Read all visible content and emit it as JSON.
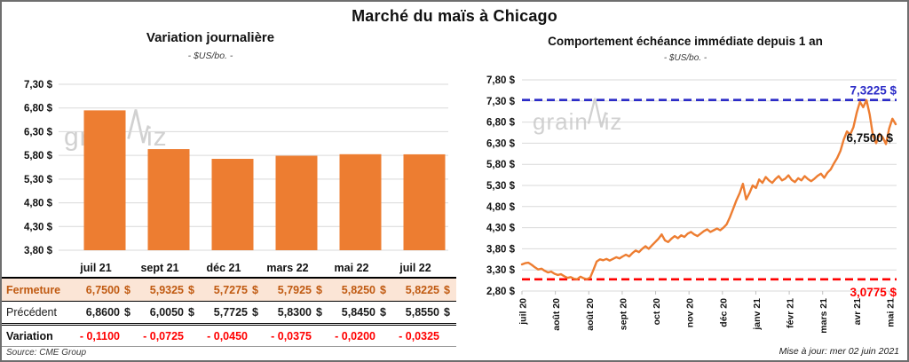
{
  "page": {
    "title": "Marché du maïs à Chicago",
    "watermark": "grainwiz",
    "source": "Source: CME Group",
    "updated": "Mise à jour: mer 02 juin 2021"
  },
  "left_chart": {
    "title": "Variation journalière",
    "subtitle": "- $US/bo. -"
  },
  "right_chart": {
    "title": "Comportement échéance immédiate depuis 1 an",
    "subtitle": "- $US/bo. -"
  },
  "table": {
    "headers": [
      "juil 21",
      "sept 21",
      "déc 21",
      "mars 22",
      "mai 22",
      "juil 22"
    ],
    "rows": {
      "fermeture": {
        "label": "Fermeture",
        "suffix": "$",
        "values": [
          "6,7500",
          "5,9325",
          "5,7275",
          "5,7925",
          "5,8250",
          "5,8225"
        ]
      },
      "precedent": {
        "label": "Précédent",
        "suffix": "$",
        "values": [
          "6,8600",
          "6,0050",
          "5,7725",
          "5,8300",
          "5,8450",
          "5,8550"
        ]
      },
      "variation": {
        "label": "Variation",
        "suffix": "",
        "values": [
          "- 0,1100",
          "- 0,0725",
          "- 0,0450",
          "- 0,0375",
          "- 0,0200",
          "- 0,0325"
        ]
      }
    }
  },
  "chart_data": [
    {
      "type": "bar",
      "title": "Variation journalière",
      "subtitle": "- $US/bo. -",
      "categories": [
        "juil 21",
        "sept 21",
        "déc 21",
        "mars 22",
        "mai 22",
        "juil 22"
      ],
      "values": [
        6.75,
        5.9325,
        5.7275,
        5.7925,
        5.825,
        5.8225
      ],
      "ylim": [
        3.8,
        7.3
      ],
      "yticks": [
        "7,30 $",
        "6,80 $",
        "6,30 $",
        "5,80 $",
        "5,30 $",
        "4,80 $",
        "4,30 $",
        "3,80 $"
      ],
      "bar_color": "#ED7D31",
      "grid_color": "#D9D9D9",
      "legend": "none"
    },
    {
      "type": "line",
      "title": "Comportement échéance immédiate depuis 1 an",
      "subtitle": "- $US/bo. -",
      "x_labels": [
        "juil 20",
        "août 20",
        "août 20",
        "sept 20",
        "oct 20",
        "nov 20",
        "déc 20",
        "janv 21",
        "févr 21",
        "mars 21",
        "avr 21",
        "mai 21"
      ],
      "ylim": [
        2.8,
        7.8
      ],
      "yticks": [
        "7,80 $",
        "7,30 $",
        "6,80 $",
        "6,30 $",
        "5,80 $",
        "5,30 $",
        "4,80 $",
        "4,30 $",
        "3,80 $",
        "3,30 $",
        "2,80 $"
      ],
      "line_color": "#ED7D31",
      "grid_color": "#D9D9D9",
      "max_line": {
        "value": 7.3225,
        "label": "7,3225 $",
        "color": "#2B2BC7",
        "style": "dashed"
      },
      "min_line": {
        "value": 3.0775,
        "label": "3,0775 $",
        "color": "#FF0000",
        "style": "dashed"
      },
      "last_point_label": {
        "value": 6.75,
        "label": "6,7500 $",
        "color": "#111111"
      },
      "values": [
        3.43,
        3.46,
        3.47,
        3.42,
        3.36,
        3.31,
        3.33,
        3.28,
        3.24,
        3.26,
        3.21,
        3.18,
        3.2,
        3.15,
        3.11,
        3.13,
        3.09,
        3.08,
        3.14,
        3.1,
        3.08,
        3.12,
        3.3,
        3.5,
        3.55,
        3.53,
        3.56,
        3.52,
        3.56,
        3.6,
        3.57,
        3.62,
        3.66,
        3.62,
        3.7,
        3.76,
        3.72,
        3.8,
        3.86,
        3.8,
        3.88,
        3.96,
        4.04,
        4.14,
        4.0,
        3.96,
        4.04,
        4.1,
        4.05,
        4.12,
        4.08,
        4.16,
        4.2,
        4.14,
        4.1,
        4.16,
        4.22,
        4.26,
        4.2,
        4.24,
        4.28,
        4.24,
        4.3,
        4.38,
        4.55,
        4.75,
        4.95,
        5.12,
        5.34,
        4.97,
        5.12,
        5.3,
        5.24,
        5.44,
        5.36,
        5.5,
        5.42,
        5.36,
        5.45,
        5.52,
        5.42,
        5.46,
        5.54,
        5.43,
        5.38,
        5.47,
        5.42,
        5.52,
        5.45,
        5.4,
        5.46,
        5.53,
        5.58,
        5.48,
        5.6,
        5.68,
        5.82,
        5.95,
        6.12,
        6.38,
        6.58,
        6.5,
        6.68,
        7.02,
        7.28,
        7.15,
        7.32,
        6.98,
        6.48,
        6.3,
        6.52,
        6.44,
        6.28,
        6.65,
        6.88,
        6.75
      ]
    }
  ]
}
